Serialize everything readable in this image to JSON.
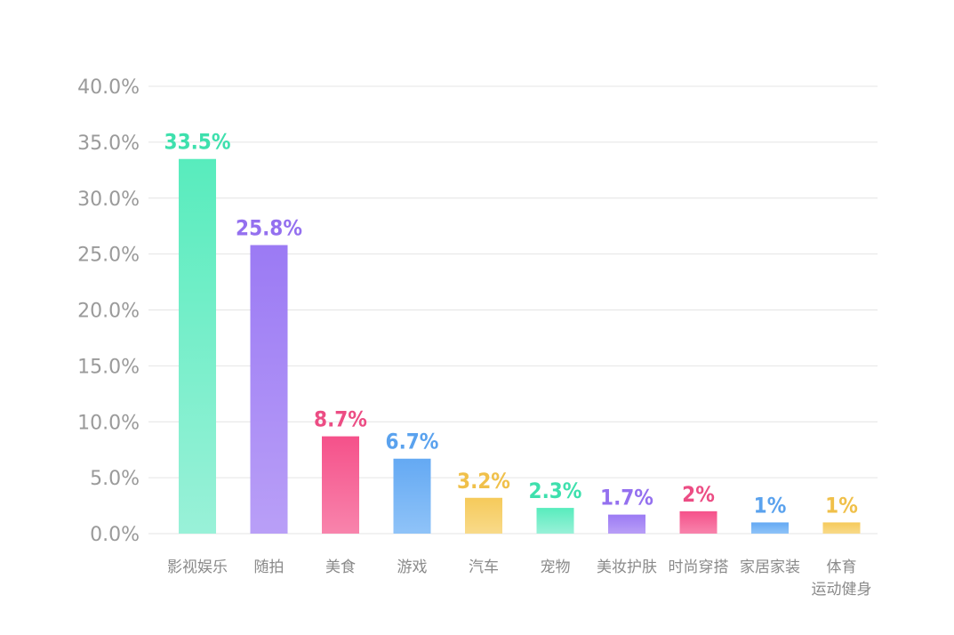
{
  "chart_data": {
    "type": "bar",
    "categories": [
      "影视娱乐",
      "随拍",
      "美食",
      "游戏",
      "汽车",
      "宠物",
      "美妆护肤",
      "时尚穿搭",
      "家居家装",
      "体育运动健身"
    ],
    "category_display": [
      [
        "影视娱乐"
      ],
      [
        "随拍"
      ],
      [
        "美食"
      ],
      [
        "游戏"
      ],
      [
        "汽车"
      ],
      [
        "宠物"
      ],
      [
        "美妆护肤"
      ],
      [
        "时尚穿搭"
      ],
      [
        "家居家装"
      ],
      [
        "体育",
        "运动健身"
      ]
    ],
    "values": [
      33.5,
      25.8,
      8.7,
      6.7,
      3.2,
      2.3,
      1.7,
      2,
      1,
      1
    ],
    "data_labels": [
      "33.5%",
      "25.8%",
      "8.7%",
      "6.7%",
      "3.2%",
      "2.3%",
      "1.7%",
      "2%",
      "1%",
      "1%"
    ],
    "bar_colors": [
      [
        "#58ecbd",
        "#99f1d8"
      ],
      [
        "#9b7af4",
        "#b99ff7"
      ],
      [
        "#f5518a",
        "#f884ac"
      ],
      [
        "#64a9f3",
        "#8fc3f8"
      ],
      [
        "#f6ca5a",
        "#f8da8a"
      ],
      [
        "#58ecbd",
        "#99f1d8"
      ],
      [
        "#9b7af4",
        "#b99ff7"
      ],
      [
        "#f5518a",
        "#f884ac"
      ],
      [
        "#64a9f3",
        "#8fc3f8"
      ],
      [
        "#f6ca5a",
        "#f8da8a"
      ]
    ],
    "label_colors": [
      "#3ee0ad",
      "#9470ef",
      "#ec4d84",
      "#5aa2ee",
      "#f0c04a",
      "#3ee0ad",
      "#9470ef",
      "#ec4d84",
      "#5aa2ee",
      "#f0c04a"
    ],
    "yticks": [
      "0.0%",
      "5.0%",
      "10.0%",
      "15.0%",
      "20.0%",
      "25.0%",
      "30.0%",
      "35.0%",
      "40.0%"
    ],
    "ylim": [
      0,
      40
    ],
    "grid": true,
    "title": "",
    "xlabel": "",
    "ylabel": ""
  }
}
